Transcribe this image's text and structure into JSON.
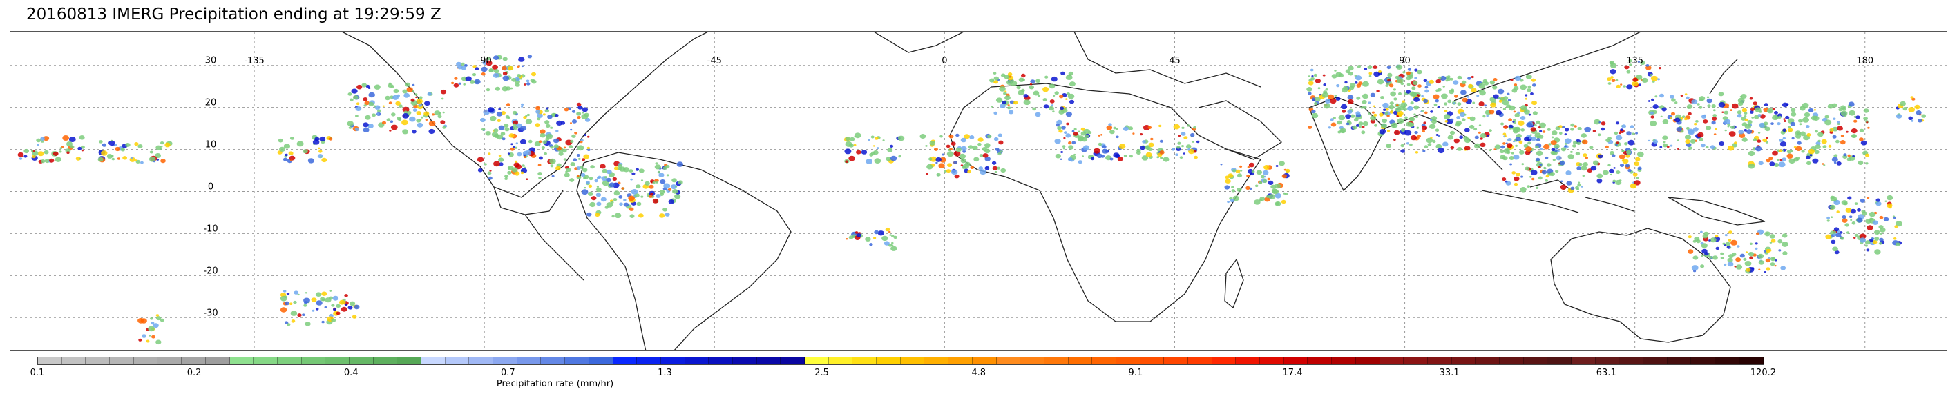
{
  "title": "20160813 IMERG Precipitation ending at 19:29:59 Z",
  "map": {
    "lon_labels": [
      "-135",
      "-90",
      "-45",
      "0",
      "45",
      "90",
      "135",
      "180"
    ],
    "lat_labels": [
      "30",
      "20",
      "10",
      "0",
      "-10",
      "-20",
      "-30"
    ]
  },
  "colorbar": {
    "label": "Precipitation rate (mm/hr)",
    "ticks": [
      "0.1",
      "0.2",
      "0.4",
      "0.7",
      "1.3",
      "2.5",
      "4.8",
      "9.1",
      "17.4",
      "33.1",
      "63.1",
      "120.2"
    ],
    "colors": [
      "#c8c8c8",
      "#c2c2c2",
      "#bcbcbc",
      "#b6b6b6",
      "#b0b0b0",
      "#aaaaaa",
      "#a4a4a4",
      "#9e9e9e",
      "#8fe08f",
      "#86d886",
      "#7ed07e",
      "#76c876",
      "#6ec06e",
      "#66b866",
      "#5eb05e",
      "#56a856",
      "#c8d8ff",
      "#b4c8fa",
      "#a0b8f5",
      "#8ca8f0",
      "#7898eb",
      "#6488e6",
      "#5078e1",
      "#3c68dc",
      "#0a28ff",
      "#0a22f0",
      "#0a1ce0",
      "#0a16d0",
      "#0a10c0",
      "#0a0ab0",
      "#0a08a8",
      "#0a06a0",
      "#ffff3c",
      "#fff028",
      "#ffe014",
      "#ffd000",
      "#ffc000",
      "#ffb000",
      "#ffa000",
      "#ff9000",
      "#ff8c1e",
      "#ff8214",
      "#ff780a",
      "#ff6e00",
      "#ff6400",
      "#ff5a00",
      "#ff5000",
      "#ff4600",
      "#ff3c00",
      "#ff2800",
      "#f01400",
      "#e00a00",
      "#d00000",
      "#c00000",
      "#b00000",
      "#a00000",
      "#961414",
      "#8c1414",
      "#821414",
      "#781414",
      "#6e1414",
      "#641414",
      "#5a1414",
      "#501414",
      "#6e1e1e",
      "#641a1a",
      "#5a1616",
      "#501212",
      "#460e0e",
      "#3c0a0a",
      "#320606",
      "#280202"
    ]
  }
}
